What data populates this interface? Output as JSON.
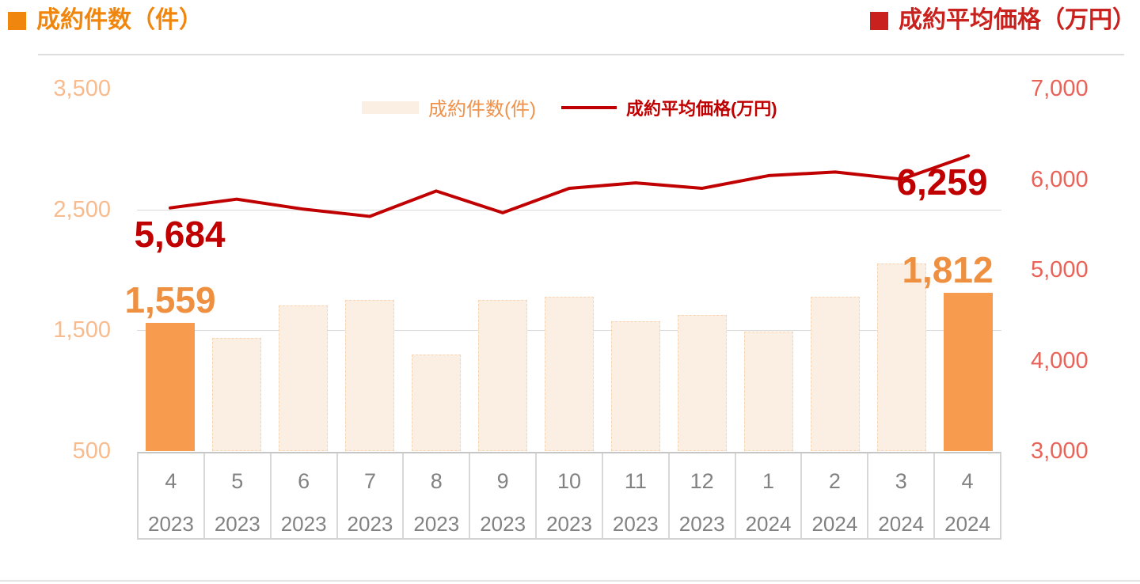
{
  "header": {
    "left_title": "成約件数（件）",
    "right_title": "成約平均価格（万円）"
  },
  "legend": {
    "bars_label": "成約件数(件)",
    "line_label": "成約平均価格(万円)"
  },
  "colors": {
    "accent_orange": "#F0860D",
    "red_title": "#C9211E",
    "line_red": "#C00000",
    "bar_fill": "#FBEFE3",
    "bar_highlight": "#F79C4F",
    "bar_label": "#EF9040",
    "legend_orange": "#F0924B",
    "left_axis_label": "#F8BB8E",
    "right_axis_label": "#E96258",
    "grid": "#D8D8D8"
  },
  "chart_data": {
    "type": "bar+line",
    "title": "成約件数（件）/ 成約平均価格（万円）",
    "legend_position": "top-center-inside",
    "grid": "horizontal-light",
    "categories": [
      {
        "month": "4",
        "year": "2023"
      },
      {
        "month": "5",
        "year": "2023"
      },
      {
        "month": "6",
        "year": "2023"
      },
      {
        "month": "7",
        "year": "2023"
      },
      {
        "month": "8",
        "year": "2023"
      },
      {
        "month": "9",
        "year": "2023"
      },
      {
        "month": "10",
        "year": "2023"
      },
      {
        "month": "11",
        "year": "2023"
      },
      {
        "month": "12",
        "year": "2023"
      },
      {
        "month": "1",
        "year": "2024"
      },
      {
        "month": "2",
        "year": "2024"
      },
      {
        "month": "3",
        "year": "2024"
      },
      {
        "month": "4",
        "year": "2024"
      }
    ],
    "series": [
      {
        "name": "成約件数(件)",
        "type": "bar",
        "axis": "left",
        "values": [
          1559,
          1435,
          1705,
          1750,
          1300,
          1750,
          1775,
          1575,
          1625,
          1490,
          1775,
          2055,
          1812
        ],
        "highlighted_indices": [
          0,
          12
        ]
      },
      {
        "name": "成約平均価格(万円)",
        "type": "line",
        "axis": "right",
        "values": [
          5684,
          5780,
          5670,
          5590,
          5870,
          5630,
          5900,
          5960,
          5900,
          6040,
          6080,
          6000,
          6259
        ]
      }
    ],
    "left_axis": {
      "label": "成約件数（件）",
      "ticks": [
        "3,500",
        "2,500",
        "1,500",
        "500"
      ],
      "tick_values": [
        3500,
        2500,
        1500,
        500
      ],
      "min": 500,
      "max": 3500,
      "gridline_values": [
        2500,
        1500
      ]
    },
    "right_axis": {
      "label": "成約平均価格（万円）",
      "ticks": [
        "7,000",
        "6,000",
        "5,000",
        "4,000",
        "3,000"
      ],
      "tick_values": [
        7000,
        6000,
        5000,
        4000,
        3000
      ],
      "min": 3000,
      "max": 7000
    },
    "point_labels": [
      {
        "series": 0,
        "index": 0,
        "text": "1,559"
      },
      {
        "series": 0,
        "index": 12,
        "text": "1,812"
      },
      {
        "series": 1,
        "index": 0,
        "text": "5,684"
      },
      {
        "series": 1,
        "index": 12,
        "text": "6,259"
      }
    ]
  }
}
